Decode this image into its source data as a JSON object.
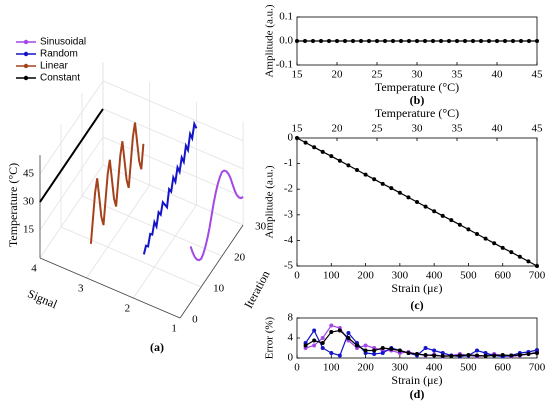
{
  "chart_data": [
    {
      "type": "line3d",
      "label": "(a)",
      "zlabel": "Temperature (°C)",
      "xlabel": "Signal",
      "ylabel": "Iteration",
      "xlim": [
        1,
        4
      ],
      "xticks": [
        1,
        2,
        3,
        4
      ],
      "ylim": [
        0,
        30
      ],
      "yticks": [
        0,
        10,
        20,
        30
      ],
      "zlim": [
        0,
        55
      ],
      "zticks": [
        15,
        30,
        45
      ],
      "legend": "upper left",
      "x": [
        0,
        1,
        2,
        3,
        4,
        5,
        6,
        7,
        8,
        9,
        10,
        11,
        12,
        13,
        14,
        15,
        16,
        17,
        18,
        19,
        20,
        21,
        22,
        23,
        24,
        25,
        26,
        27,
        28,
        29,
        30
      ],
      "series": [
        {
          "name": "Sinusoidal",
          "color": "#a347e6",
          "signal": 1,
          "values": [
            null,
            null,
            null,
            null,
            null,
            30,
            25,
            21,
            18,
            16,
            15,
            16,
            18,
            21,
            25,
            30,
            35,
            39,
            42,
            44,
            45,
            44,
            42,
            39,
            35,
            30,
            25,
            21,
            18,
            16,
            15
          ]
        },
        {
          "name": "Random",
          "color": "#1414c8",
          "signal": 2,
          "values": [
            null,
            null,
            null,
            null,
            null,
            15,
            18,
            16,
            21,
            19,
            24,
            20,
            26,
            23,
            28,
            25,
            22,
            30,
            27,
            33,
            29,
            35,
            31,
            37,
            33,
            40,
            36,
            43,
            39,
            45,
            41
          ]
        },
        {
          "name": "Linear",
          "color": "#a5421c",
          "signal": 3,
          "values": [
            null,
            null,
            15,
            27,
            39,
            45,
            33,
            21,
            15,
            27,
            39,
            45,
            33,
            21,
            15,
            27,
            39,
            45,
            33,
            21,
            15,
            27,
            39,
            45,
            33,
            21,
            15,
            27,
            null,
            null,
            null
          ]
        },
        {
          "name": "Constant",
          "color": "#000000",
          "signal": 4,
          "values": [
            30,
            30,
            30,
            30,
            30,
            30,
            30,
            30,
            30,
            30,
            30,
            30,
            30,
            30,
            30,
            30,
            30,
            30,
            30,
            30,
            30,
            30,
            30,
            30,
            30,
            30,
            30,
            30,
            30,
            30,
            30
          ]
        }
      ]
    },
    {
      "type": "line",
      "label": "(b)",
      "xlabel": "Temperature (°C)",
      "ylabel": "Amplitude (a.u.)",
      "xlim": [
        15,
        45
      ],
      "xticks": [
        15,
        20,
        25,
        30,
        35,
        40,
        45
      ],
      "ylim": [
        -0.1,
        0.1
      ],
      "yticks": [
        0.1,
        {
          "value": 0,
          "label": "0.0"
        },
        -0.1
      ],
      "x": [
        15,
        16,
        17,
        18,
        19,
        20,
        21,
        22,
        23,
        24,
        25,
        26,
        27,
        28,
        29,
        30,
        31,
        32,
        33,
        34,
        35,
        36,
        37,
        38,
        39,
        40,
        41,
        42,
        43,
        44,
        45
      ],
      "series": [
        {
          "color": "#000000",
          "values": [
            0,
            0,
            0,
            0,
            0,
            0,
            0,
            0,
            0,
            0,
            0,
            0,
            0,
            0,
            0,
            0,
            0,
            0,
            0,
            0,
            0,
            0,
            0,
            0,
            0,
            0,
            0,
            0,
            0,
            0,
            0
          ]
        }
      ]
    },
    {
      "type": "line",
      "label": "(c)",
      "xlabel": "Strain (με)",
      "ylabel": "Amplitude (a.u.)",
      "x2label": "Temperature (°C)",
      "x2lim": [
        15,
        45
      ],
      "x2ticks": [
        15,
        20,
        25,
        30,
        35,
        40,
        45
      ],
      "xlim": [
        0,
        700
      ],
      "xticks": [
        0,
        100,
        200,
        300,
        400,
        500,
        600,
        700
      ],
      "ylim": [
        -5,
        0
      ],
      "yticks": [
        0,
        -1,
        -2,
        -3,
        -4,
        -5
      ],
      "x": [
        0,
        25,
        50,
        75,
        100,
        125,
        150,
        175,
        200,
        225,
        250,
        275,
        300,
        325,
        350,
        375,
        400,
        425,
        450,
        475,
        500,
        525,
        550,
        575,
        600,
        625,
        650,
        675,
        700
      ],
      "series": [
        {
          "color": "#000000",
          "values": [
            0,
            -0.18,
            -0.36,
            -0.54,
            -0.71,
            -0.89,
            -1.07,
            -1.25,
            -1.43,
            -1.61,
            -1.79,
            -1.96,
            -2.14,
            -2.32,
            -2.5,
            -2.68,
            -2.86,
            -3.04,
            -3.21,
            -3.39,
            -3.57,
            -3.75,
            -3.93,
            -4.11,
            -4.29,
            -4.46,
            -4.64,
            -4.82,
            -5
          ]
        }
      ]
    },
    {
      "type": "line",
      "label": "(d)",
      "xlabel": "Strain (με)",
      "ylabel": "Error (%)",
      "xlim": [
        0,
        700
      ],
      "xticks": [
        0,
        100,
        200,
        300,
        400,
        500,
        600,
        700
      ],
      "ylim": [
        0,
        8
      ],
      "yticks": [
        0,
        4,
        8
      ],
      "x": [
        25,
        50,
        75,
        100,
        125,
        150,
        175,
        200,
        225,
        250,
        275,
        300,
        325,
        350,
        375,
        400,
        425,
        450,
        475,
        500,
        525,
        550,
        575,
        600,
        625,
        650,
        675,
        700
      ],
      "series": [
        {
          "color": "#a347e6",
          "values": [
            2,
            2.5,
            4,
            6.5,
            6,
            3.5,
            2,
            2.5,
            2,
            1.5,
            1.5,
            1,
            1.2,
            0.8,
            0.5,
            0.7,
            0.3,
            0.5,
            0.8,
            0.5,
            0.3,
            0.5,
            0.8,
            0.5,
            0.3,
            0.5,
            0.8,
            1.2
          ]
        },
        {
          "color": "#1414c8",
          "values": [
            3,
            5.5,
            2,
            1,
            0.5,
            5,
            3,
            1,
            0.8,
            1,
            2,
            1.5,
            1,
            0.5,
            2,
            1.5,
            1,
            0.5,
            0.3,
            0.5,
            1.5,
            1,
            0.5,
            0.3,
            0.5,
            1,
            1.2,
            1.6
          ]
        },
        {
          "color": "#000000",
          "values": [
            2.5,
            3.5,
            3,
            5.2,
            5.5,
            4,
            2.5,
            1.5,
            1.5,
            2,
            1.8,
            1.5,
            1,
            0.8,
            0.6,
            0.5,
            0.4,
            0.4,
            0.5,
            0.6,
            0.5,
            0.4,
            0.5,
            0.6,
            0.5,
            0.6,
            0.8,
            1
          ]
        }
      ]
    }
  ]
}
